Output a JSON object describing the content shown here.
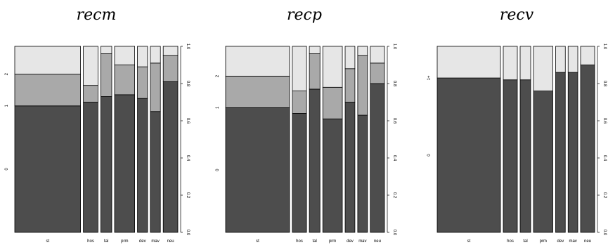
{
  "chart_data": [
    {
      "type": "bar",
      "title": "recm",
      "categories": [
        "st",
        "hos",
        "tal",
        "prm",
        "dev",
        "mav",
        "neu"
      ],
      "widths": [
        0.36,
        0.08,
        0.06,
        0.11,
        0.055,
        0.055,
        0.08
      ],
      "levels": [
        "0",
        "1",
        "2"
      ],
      "series": [
        {
          "name": "0",
          "values": [
            0.68,
            0.7,
            0.73,
            0.74,
            0.72,
            0.65,
            0.81
          ]
        },
        {
          "name": "1",
          "values": [
            0.17,
            0.09,
            0.23,
            0.16,
            0.17,
            0.26,
            0.14
          ]
        },
        {
          "name": "2",
          "values": [
            0.15,
            0.21,
            0.04,
            0.1,
            0.11,
            0.09,
            0.05
          ]
        }
      ],
      "colors": [
        "#4d4d4d",
        "#a9a9a9",
        "#e6e6e6"
      ],
      "ylim": [
        0,
        1
      ],
      "yticks": [
        "0.0",
        "0.2",
        "0.4",
        "0.6",
        "0.8",
        "1.0"
      ]
    },
    {
      "type": "bar",
      "title": "recp",
      "categories": [
        "st",
        "hos",
        "tal",
        "prm",
        "dev",
        "mav",
        "neu"
      ],
      "widths": [
        0.36,
        0.08,
        0.06,
        0.11,
        0.055,
        0.055,
        0.08
      ],
      "levels": [
        "0",
        "1",
        "2"
      ],
      "series": [
        {
          "name": "0",
          "values": [
            0.67,
            0.64,
            0.77,
            0.61,
            0.7,
            0.63,
            0.8
          ]
        },
        {
          "name": "1",
          "values": [
            0.17,
            0.12,
            0.19,
            0.17,
            0.18,
            0.32,
            0.11
          ]
        },
        {
          "name": "2",
          "values": [
            0.16,
            0.24,
            0.04,
            0.22,
            0.12,
            0.05,
            0.09
          ]
        }
      ],
      "colors": [
        "#4d4d4d",
        "#a9a9a9",
        "#e6e6e6"
      ],
      "ylim": [
        0,
        1
      ],
      "yticks": [
        "0.0",
        "0.2",
        "0.4",
        "0.6",
        "0.8",
        "1.0"
      ]
    },
    {
      "type": "bar",
      "title": "recv",
      "categories": [
        "st",
        "hos",
        "tal",
        "prm",
        "dev",
        "mav",
        "neu"
      ],
      "widths": [
        0.36,
        0.08,
        0.06,
        0.11,
        0.055,
        0.055,
        0.08
      ],
      "levels": [
        "0",
        "1+"
      ],
      "series": [
        {
          "name": "0",
          "values": [
            0.83,
            0.82,
            0.82,
            0.76,
            0.86,
            0.86,
            0.9
          ]
        },
        {
          "name": "1+",
          "values": [
            0.17,
            0.18,
            0.18,
            0.24,
            0.14,
            0.14,
            0.1
          ]
        }
      ],
      "colors": [
        "#4d4d4d",
        "#e6e6e6"
      ],
      "ylim": [
        0,
        1
      ],
      "yticks": [
        "0.0",
        "0.2",
        "0.4",
        "0.6",
        "0.8",
        "1.0"
      ]
    }
  ]
}
